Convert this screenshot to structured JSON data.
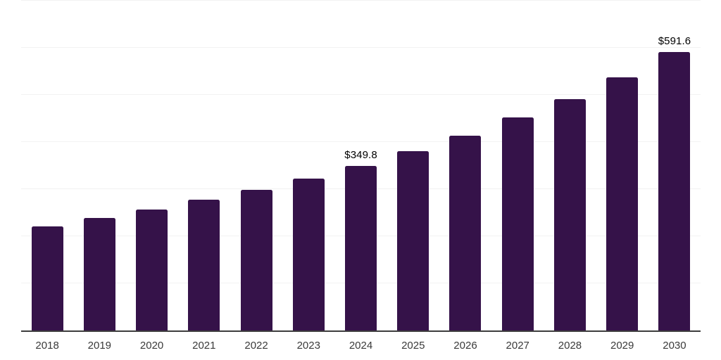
{
  "chart_data": {
    "type": "bar",
    "title": "",
    "xlabel": "",
    "ylabel": "",
    "categories": [
      "2018",
      "2019",
      "2020",
      "2021",
      "2022",
      "2023",
      "2024",
      "2025",
      "2026",
      "2027",
      "2028",
      "2029",
      "2030"
    ],
    "values": [
      220.6,
      238.5,
      256.4,
      277.2,
      298.1,
      321.9,
      349.8,
      380.1,
      412.8,
      451.6,
      491.8,
      538.0,
      591.6
    ],
    "data_labels": {
      "2024": "$349.8",
      "2030": "$591.6"
    },
    "ylim": [
      0,
      700
    ],
    "gridline_step": 100,
    "grid": "horizontal only, no y-axis tick labels",
    "legend": "none",
    "bar_color": "#351249",
    "axis_line_color": "#3d3d3d",
    "gridline_color": "#f2f2f2",
    "data_label_color": "#000000",
    "tick_label_color": "#3a3a3a"
  }
}
